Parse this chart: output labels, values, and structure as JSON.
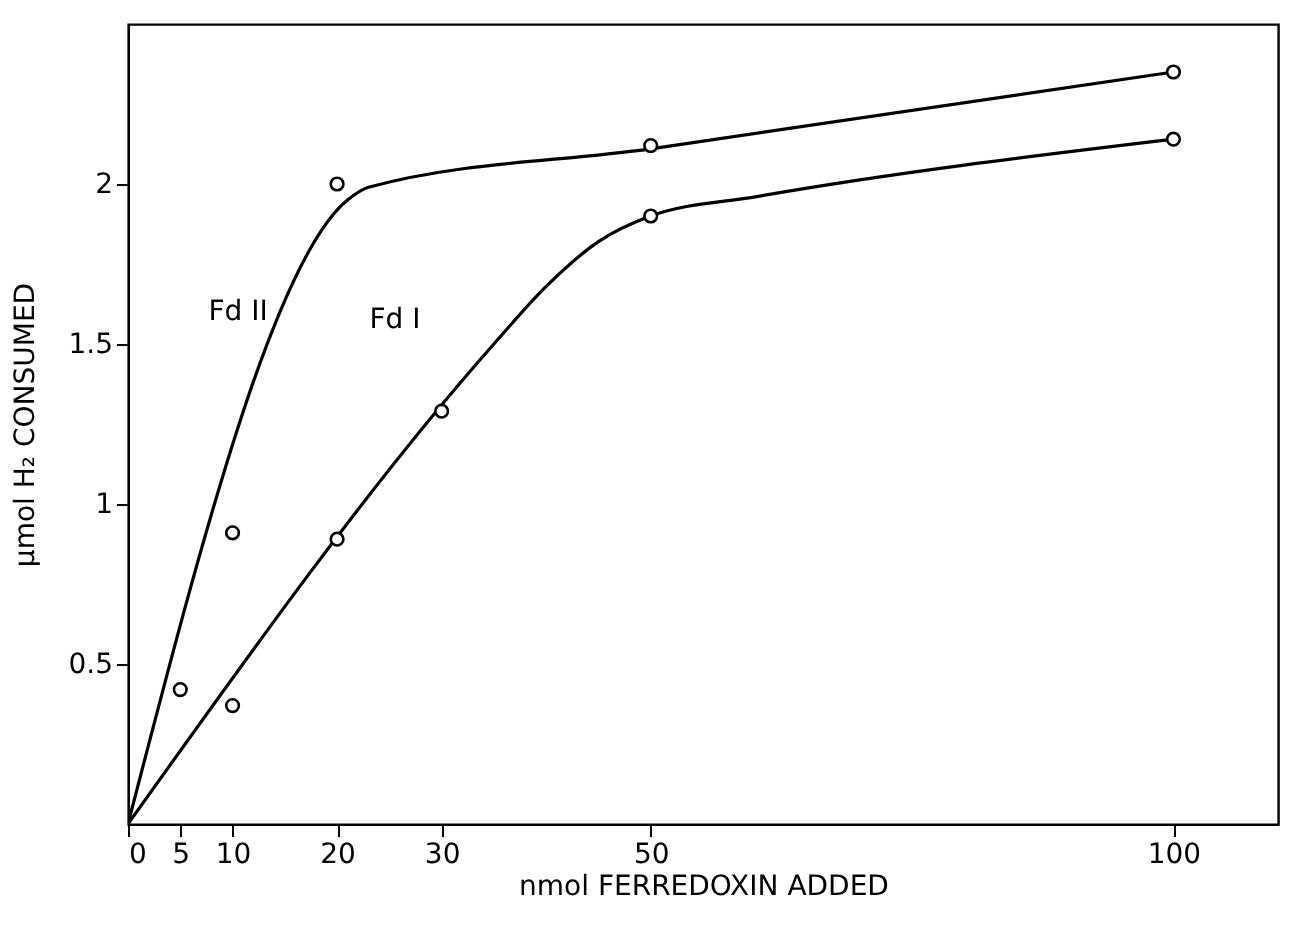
{
  "chart_data": {
    "type": "line",
    "xlabel": "nmol FERREDOXIN ADDED",
    "ylabel": "μmol H₂ CONSUMED",
    "xlim": [
      0,
      110
    ],
    "ylim": [
      0,
      2.5
    ],
    "xticks": [
      0,
      5,
      10,
      20,
      30,
      50,
      100
    ],
    "yticks": [
      0.5,
      1,
      1.5,
      2
    ],
    "grid": false,
    "line_style": "solid",
    "series": [
      {
        "marker": "none",
        "color": "#000000",
        "x": [
          0,
          21,
          23,
          50,
          100
        ],
        "values": [
          0,
          1.95,
          1.99,
          2.11,
          2.35
        ]
      },
      {
        "marker": "none",
        "color": "#000000",
        "x": [
          0,
          35,
          40,
          45,
          50,
          60,
          100
        ],
        "values": [
          0,
          1.5,
          1.68,
          1.82,
          1.9,
          1.96,
          2.14
        ]
      },
      {
        "type": "scatter",
        "marker": "circle",
        "color": "#000000",
        "x": [
          5,
          10,
          20,
          50,
          100
        ],
        "values": [
          0.42,
          0.91,
          2.0,
          2.12,
          2.35
        ]
      },
      {
        "type": "scatter",
        "marker": "circle",
        "color": "#000000",
        "x": [
          10,
          20,
          30,
          50,
          100
        ],
        "values": [
          0.37,
          0.89,
          1.29,
          1.9,
          2.14
        ]
      }
    ],
    "annotations": [
      "Fd II",
      "Fd I"
    ]
  }
}
